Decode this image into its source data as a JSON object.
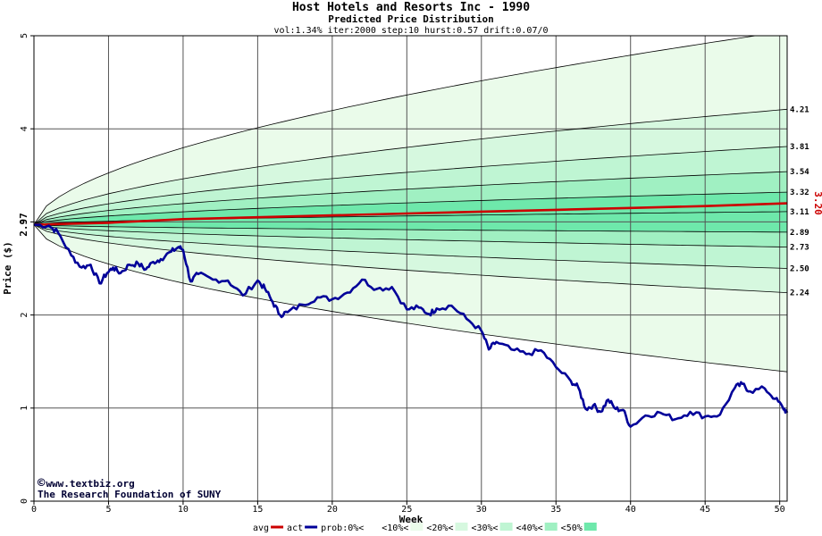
{
  "chart_data": {
    "type": "line",
    "title": "Host Hotels and Resorts Inc - 1990",
    "subtitle": "Predicted Price Distribution",
    "params": "vol:1.34% iter:2000 step:10 hurst:0.57 drift:0.07/0",
    "xlabel": "Week",
    "ylabel": "Price ($)",
    "xlim": [
      0,
      50.5
    ],
    "ylim": [
      0,
      5
    ],
    "x_ticks": [
      0,
      5,
      10,
      15,
      20,
      25,
      30,
      35,
      40,
      45,
      50
    ],
    "y_ticks": [
      0,
      1,
      2,
      3,
      4,
      5
    ],
    "grid": true,
    "start_price": 2.97,
    "start_label": "2.97",
    "end_weeks": 50.5,
    "band_end_values": [
      1.39,
      2.24,
      2.5,
      2.73,
      2.89,
      3.11,
      3.32,
      3.54,
      3.81,
      4.21,
      5.05
    ],
    "band_end_labels": [
      "2.24",
      "2.50",
      "2.73",
      "2.89",
      "3.11",
      "3.32",
      "3.54",
      "3.81",
      "4.21"
    ],
    "avg_end_value": 3.2,
    "avg_end_label": "3.20",
    "series": [
      {
        "name": "avg",
        "color": "#cc0000",
        "x": [
          0,
          5,
          10,
          15,
          20,
          25,
          30,
          35,
          40,
          45,
          50.5
        ],
        "values": [
          2.97,
          2.99,
          3.03,
          3.05,
          3.07,
          3.09,
          3.11,
          3.13,
          3.15,
          3.17,
          3.2
        ]
      },
      {
        "name": "act",
        "color": "#000099",
        "x": [
          0,
          1,
          1.6,
          2.5,
          3.2,
          3.8,
          4.4,
          4.9,
          5.3,
          5.8,
          6.4,
          7,
          7.5,
          8,
          8.5,
          9.2,
          9.7,
          10,
          10.5,
          11,
          12,
          13,
          14,
          15,
          15.5,
          16,
          16.5,
          17,
          18,
          19,
          20,
          21,
          22,
          23,
          24,
          25,
          25.8,
          26.5,
          27,
          28,
          29,
          30,
          30.5,
          31,
          32,
          33,
          34,
          35,
          36,
          36.5,
          37,
          37.5,
          38,
          38.5,
          39,
          39.5,
          40,
          41,
          42,
          43,
          44,
          45,
          46,
          47,
          47.5,
          48,
          49,
          49.7,
          50.2,
          50.5
        ],
        "values": [
          2.97,
          2.96,
          2.89,
          2.64,
          2.51,
          2.54,
          2.34,
          2.45,
          2.51,
          2.45,
          2.54,
          2.55,
          2.49,
          2.57,
          2.6,
          2.68,
          2.73,
          2.7,
          2.36,
          2.44,
          2.38,
          2.37,
          2.21,
          2.37,
          2.28,
          2.14,
          2.0,
          2.03,
          2.11,
          2.19,
          2.17,
          2.24,
          2.38,
          2.28,
          2.3,
          2.06,
          2.08,
          2.01,
          2.07,
          2.1,
          1.96,
          1.83,
          1.63,
          1.71,
          1.63,
          1.58,
          1.62,
          1.44,
          1.29,
          1.22,
          0.99,
          1.03,
          0.96,
          1.09,
          0.99,
          0.98,
          0.8,
          0.92,
          0.95,
          0.88,
          0.96,
          0.91,
          0.93,
          1.22,
          1.26,
          1.18,
          1.21,
          1.1,
          1.01,
          0.95
        ]
      }
    ],
    "legend": [
      {
        "label": "avg",
        "swatch": "line",
        "color": "#cc0000"
      },
      {
        "label": "act",
        "swatch": "line",
        "color": "#000099"
      },
      {
        "label": "prob:0%<",
        "swatch": "box",
        "color": "#ffffff"
      },
      {
        "label": "<10%<",
        "swatch": "box",
        "color": "#eafbea"
      },
      {
        "label": "<20%<",
        "swatch": "box",
        "color": "#d6f8df"
      },
      {
        "label": "<30%<",
        "swatch": "box",
        "color": "#bff5d3"
      },
      {
        "label": "<40%<",
        "swatch": "box",
        "color": "#a0f0c2"
      },
      {
        "label": "<50%",
        "swatch": "box",
        "color": "#6ee8ab"
      }
    ],
    "legend_position": "bottom",
    "band_colors": [
      "#eafbea",
      "#d6f8df",
      "#bff5d3",
      "#a0f0c2",
      "#6ee8ab",
      "#6ee8ab",
      "#a0f0c2",
      "#bff5d3",
      "#d6f8df",
      "#eafbea"
    ]
  },
  "credits": {
    "website": "www.textbiz.org",
    "copyright_symbol": "©",
    "org": "The Research Foundation of SUNY"
  }
}
